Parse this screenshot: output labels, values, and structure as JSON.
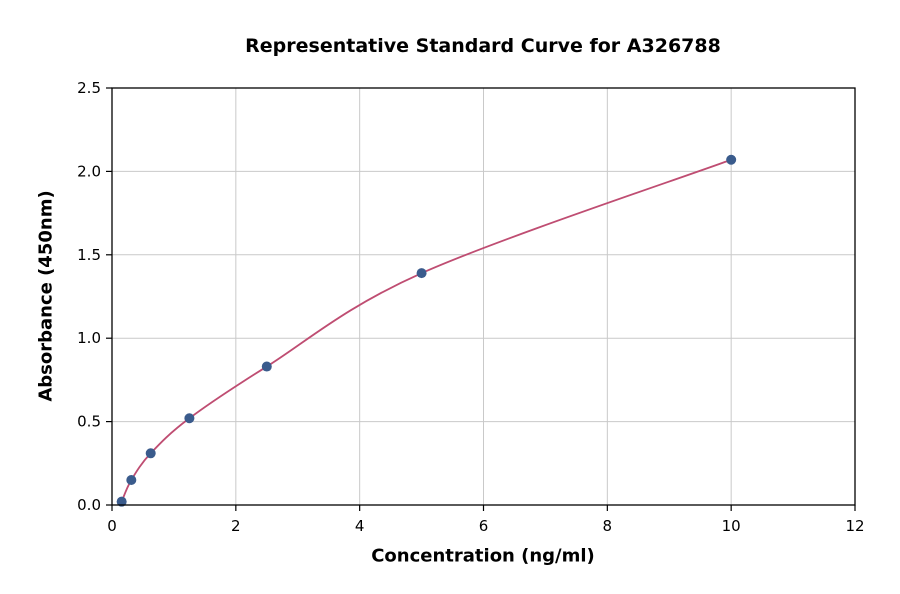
{
  "chart_data": {
    "type": "scatter",
    "title": "Representative Standard Curve for A326788",
    "xlabel": "Concentration (ng/ml)",
    "ylabel": "Absorbance (450nm)",
    "xlim": [
      0,
      12
    ],
    "ylim": [
      0,
      2.5
    ],
    "xticks": [
      0,
      2,
      4,
      6,
      8,
      10,
      12
    ],
    "xtick_labels": [
      "0",
      "2",
      "4",
      "6",
      "8",
      "10",
      "12"
    ],
    "yticks": [
      0.0,
      0.5,
      1.0,
      1.5,
      2.0,
      2.5
    ],
    "ytick_labels": [
      "0.0",
      "0.5",
      "1.0",
      "1.5",
      "2.0",
      "2.5"
    ],
    "grid": true,
    "legend": "none",
    "points": [
      {
        "x": 0.156,
        "y": 0.02
      },
      {
        "x": 0.312,
        "y": 0.15
      },
      {
        "x": 0.625,
        "y": 0.31
      },
      {
        "x": 1.25,
        "y": 0.52
      },
      {
        "x": 2.5,
        "y": 0.83
      },
      {
        "x": 5,
        "y": 1.39
      },
      {
        "x": 10,
        "y": 2.07
      }
    ],
    "point_color": "#3a5b8c",
    "line_color": "#bf4d72",
    "grid_color": "#c9c9c9",
    "axis_color": "#000000",
    "background_color": "#ffffff"
  }
}
